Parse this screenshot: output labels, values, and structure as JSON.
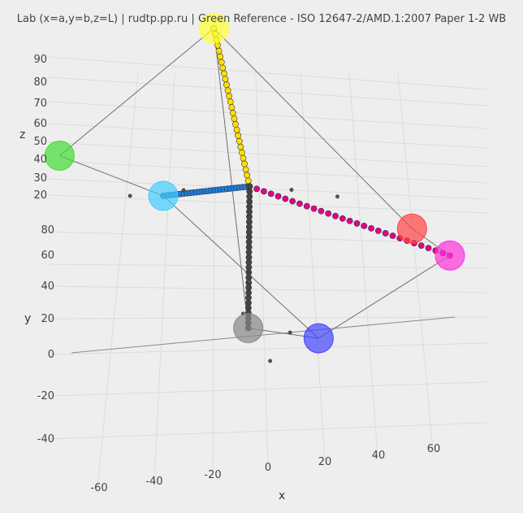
{
  "title": "Lab (x=a,y=b,z=L)  |  rudtp.pp.ru  |  Green Reference - ISO 12647-2/AMD.1:2007 Paper 1-2 WB",
  "chart_data": {
    "type": "scatter3d",
    "title": "Lab (x=a,y=b,z=L)  |  rudtp.pp.ru  |  Green Reference - ISO 12647-2/AMD.1:2007 Paper 1-2 WB",
    "xlabel": "x",
    "ylabel": "y",
    "zlabel": "z",
    "x_ticks": [
      "-60",
      "-40",
      "-20",
      "0",
      "20",
      "40",
      "60"
    ],
    "y_ticks": [
      "-40",
      "-20",
      "0",
      "20",
      "40",
      "60",
      "80"
    ],
    "z_ticks": [
      "20",
      "30",
      "40",
      "50",
      "60",
      "70",
      "80",
      "90"
    ],
    "grid": true,
    "primaries": [
      {
        "name": "Yellow",
        "color": "#ffff33",
        "a": -4,
        "b": 93,
        "L": 92
      },
      {
        "name": "Red",
        "color": "#ff4444",
        "a": 68,
        "b": 49,
        "L": 48
      },
      {
        "name": "Magenta",
        "color": "#ff33dd",
        "a": 77,
        "b": -2,
        "L": 48
      },
      {
        "name": "Blue",
        "color": "#4444ff",
        "a": 22,
        "b": -46,
        "L": 22
      },
      {
        "name": "Cyan",
        "color": "#44ccff",
        "a": -38,
        "b": -44,
        "L": 56
      },
      {
        "name": "Green",
        "color": "#44dd33",
        "a": -68,
        "b": 46,
        "L": 52
      },
      {
        "name": "Black",
        "color": "#888888",
        "a": 0,
        "b": 0,
        "L": 16
      }
    ],
    "ramps": [
      {
        "name": "Yellow ramp",
        "color": "#ffe000",
        "end_a": -4,
        "end_b": 93,
        "end_L": 92
      },
      {
        "name": "Magenta ramp",
        "color": "#e6008a",
        "end_a": 77,
        "end_b": -2,
        "end_L": 48
      },
      {
        "name": "Cyan ramp",
        "color": "#1a7fe6",
        "end_a": -38,
        "end_b": -44,
        "end_L": 56
      },
      {
        "name": "Black ramp",
        "color": "#444444",
        "end_a": 0,
        "end_b": 0,
        "end_L": 16
      }
    ]
  }
}
